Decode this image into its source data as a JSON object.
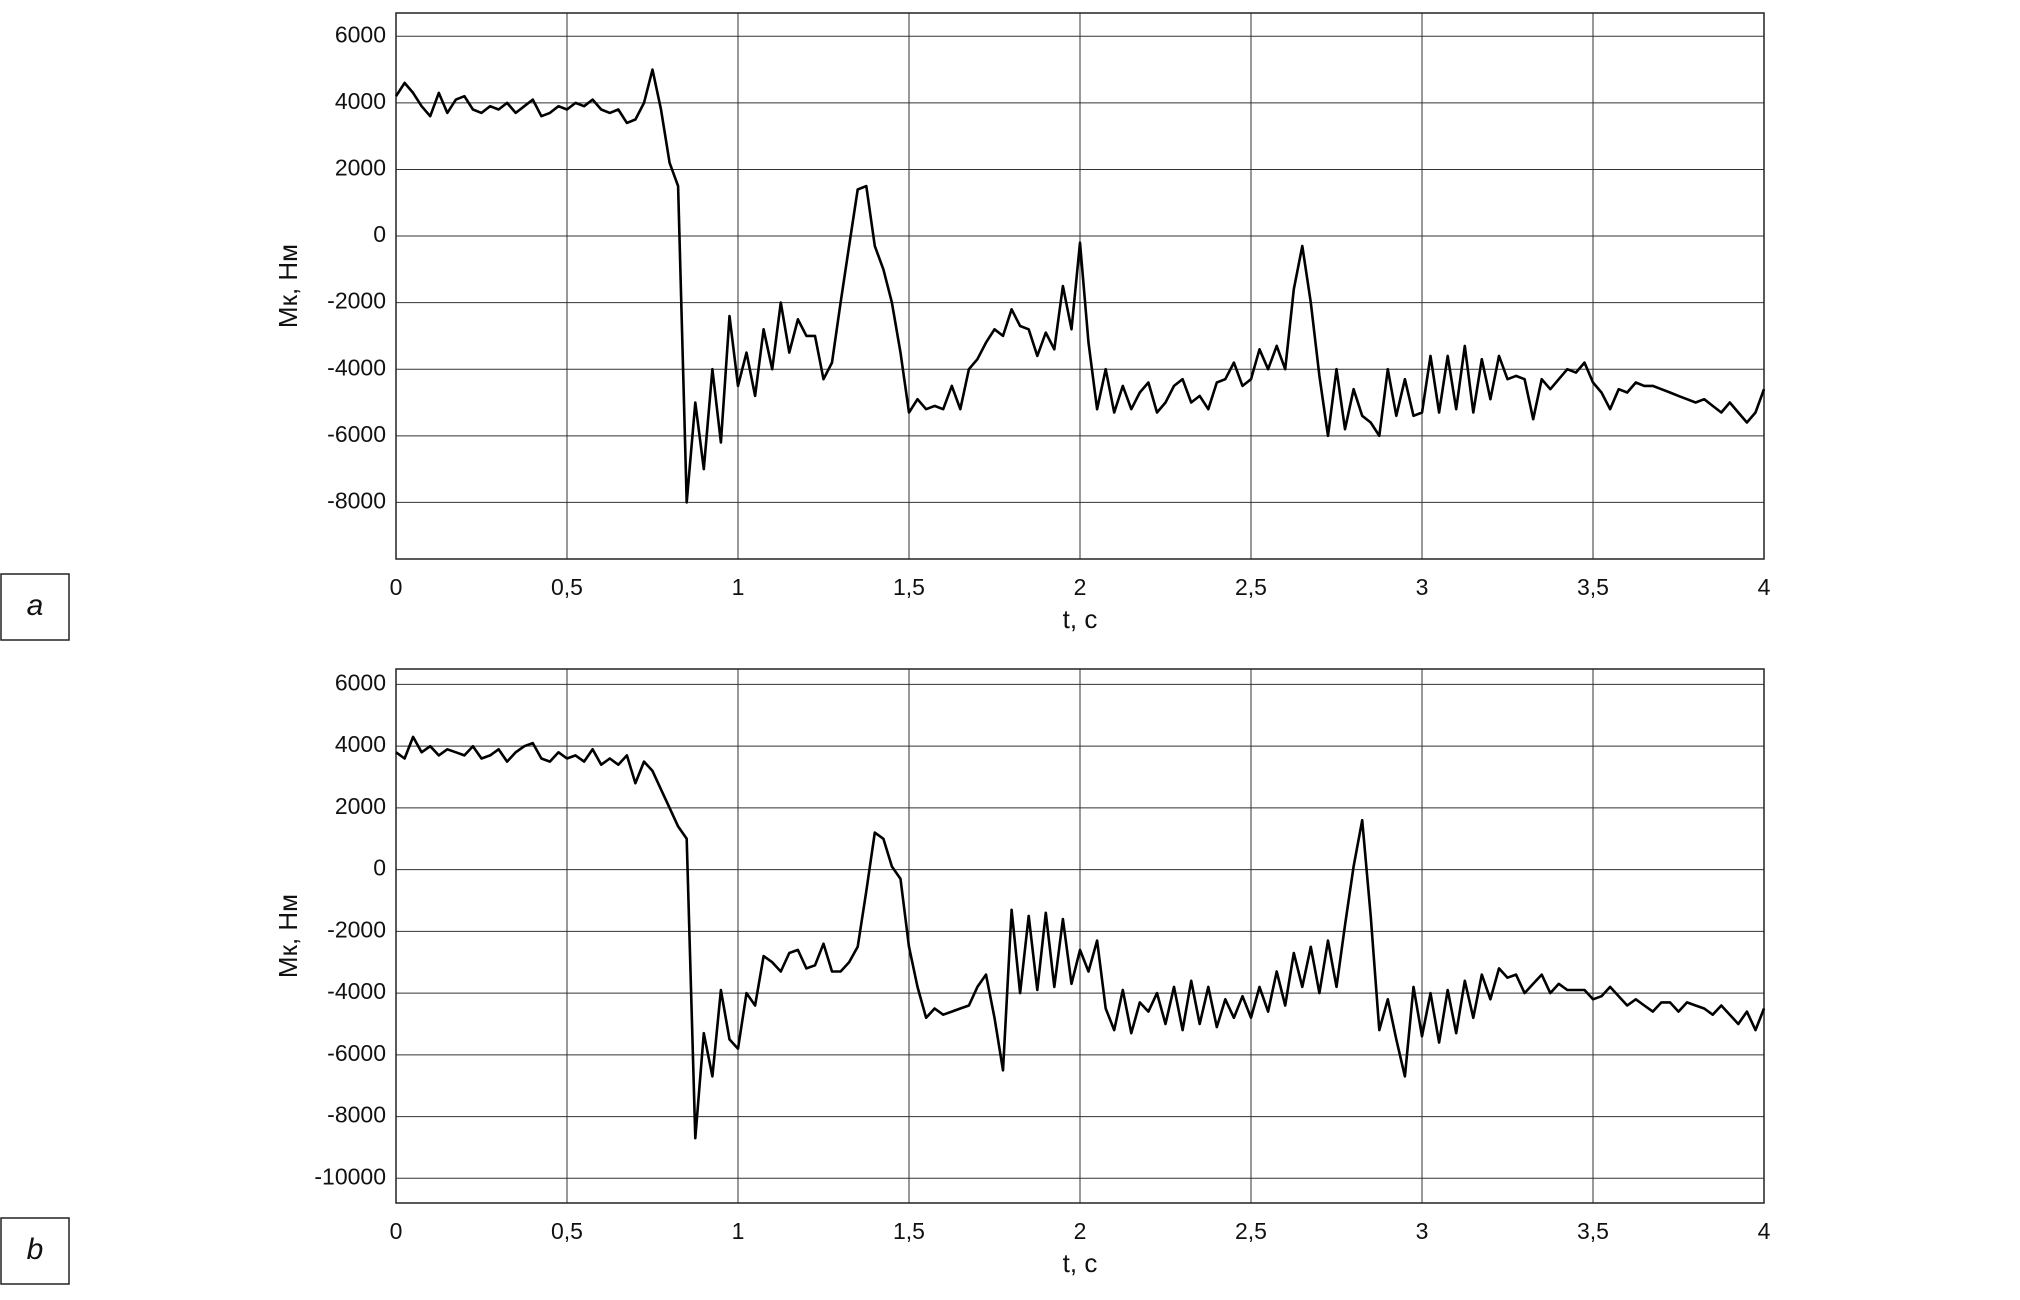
{
  "chart_data": [
    {
      "type": "line",
      "panel_label": "a",
      "xlabel": "t, c",
      "ylabel": "Мк, Нм",
      "color": "#000000",
      "grid": true,
      "xlim": [
        0,
        4
      ],
      "ylim": [
        -9700,
        6700
      ],
      "xticks": [
        0,
        {
          "value": 0.5,
          "label": "0,5"
        },
        1,
        {
          "value": 1.5,
          "label": "1,5"
        },
        2,
        {
          "value": 2.5,
          "label": "2,5"
        },
        3,
        {
          "value": 3.5,
          "label": "3,5"
        },
        4
      ],
      "yticks": [
        -8000,
        -6000,
        -4000,
        -2000,
        0,
        2000,
        4000,
        6000
      ],
      "x": [
        0,
        0.025,
        0.05,
        0.075,
        0.1,
        0.125,
        0.15,
        0.175,
        0.2,
        0.225,
        0.25,
        0.275,
        0.3,
        0.325,
        0.35,
        0.375,
        0.4,
        0.425,
        0.45,
        0.475,
        0.5,
        0.525,
        0.55,
        0.575,
        0.6,
        0.625,
        0.65,
        0.675,
        0.7,
        0.725,
        0.75,
        0.775,
        0.8,
        0.825,
        0.85,
        0.875,
        0.9,
        0.925,
        0.95,
        0.975,
        1,
        1.025,
        1.05,
        1.075,
        1.1,
        1.125,
        1.15,
        1.175,
        1.2,
        1.225,
        1.25,
        1.275,
        1.3,
        1.325,
        1.35,
        1.375,
        1.4,
        1.425,
        1.45,
        1.475,
        1.5,
        1.525,
        1.55,
        1.575,
        1.6,
        1.625,
        1.65,
        1.675,
        1.7,
        1.725,
        1.75,
        1.775,
        1.8,
        1.825,
        1.85,
        1.875,
        1.9,
        1.925,
        1.95,
        1.975,
        2,
        2.025,
        2.05,
        2.075,
        2.1,
        2.125,
        2.15,
        2.175,
        2.2,
        2.225,
        2.25,
        2.275,
        2.3,
        2.325,
        2.35,
        2.375,
        2.4,
        2.425,
        2.45,
        2.475,
        2.5,
        2.525,
        2.55,
        2.575,
        2.6,
        2.625,
        2.65,
        2.675,
        2.7,
        2.725,
        2.75,
        2.775,
        2.8,
        2.825,
        2.85,
        2.875,
        2.9,
        2.925,
        2.95,
        2.975,
        3,
        3.025,
        3.05,
        3.075,
        3.1,
        3.125,
        3.15,
        3.175,
        3.2,
        3.225,
        3.25,
        3.275,
        3.3,
        3.325,
        3.35,
        3.375,
        3.4,
        3.425,
        3.45,
        3.475,
        3.5,
        3.525,
        3.55,
        3.575,
        3.6,
        3.625,
        3.65,
        3.675,
        3.7,
        3.725,
        3.75,
        3.775,
        3.8,
        3.825,
        3.85,
        3.875,
        3.9,
        3.925,
        3.95,
        3.975,
        4
      ],
      "values": [
        4200,
        4600,
        4300,
        3900,
        3600,
        4300,
        3700,
        4100,
        4200,
        3800,
        3700,
        3900,
        3800,
        4000,
        3700,
        3900,
        4100,
        3600,
        3700,
        3900,
        3800,
        4000,
        3900,
        4100,
        3800,
        3700,
        3800,
        3400,
        3500,
        4000,
        5000,
        3800,
        2200,
        1500,
        -8000,
        -5000,
        -7000,
        -4000,
        -6200,
        -2400,
        -4500,
        -3500,
        -4800,
        -2800,
        -4000,
        -2000,
        -3500,
        -2500,
        -3000,
        -3000,
        -4300,
        -3800,
        -2000,
        -300,
        1400,
        1500,
        -300,
        -1000,
        -2000,
        -3500,
        -5300,
        -4900,
        -5200,
        -5100,
        -5200,
        -4500,
        -5200,
        -4000,
        -3700,
        -3200,
        -2800,
        -3000,
        -2200,
        -2700,
        -2800,
        -3600,
        -2900,
        -3400,
        -1500,
        -2800,
        -200,
        -3200,
        -5200,
        -4000,
        -5300,
        -4500,
        -5200,
        -4700,
        -4400,
        -5300,
        -5000,
        -4500,
        -4300,
        -5000,
        -4800,
        -5200,
        -4400,
        -4300,
        -3800,
        -4500,
        -4300,
        -3400,
        -4000,
        -3300,
        -4000,
        -1600,
        -300,
        -2000,
        -4200,
        -6000,
        -4000,
        -5800,
        -4600,
        -5400,
        -5600,
        -6000,
        -4000,
        -5400,
        -4300,
        -5400,
        -5300,
        -3600,
        -5300,
        -3600,
        -5200,
        -3300,
        -5300,
        -3700,
        -4900,
        -3600,
        -4300,
        -4200,
        -4300,
        -5500,
        -4300,
        -4600,
        -4300,
        -4000,
        -4100,
        -3800,
        -4400,
        -4700,
        -5200,
        -4600,
        -4700,
        -4400,
        -4500,
        -4500,
        -4600,
        -4700,
        -4800,
        -4900,
        -5000,
        -4900,
        -5100,
        -5300,
        -5000,
        -5300,
        -5600,
        -5300,
        -4600
      ]
    },
    {
      "type": "line",
      "panel_label": "b",
      "xlabel": "t, c",
      "ylabel": "Мк, Нм",
      "color": "#000000",
      "grid": true,
      "xlim": [
        0,
        4
      ],
      "ylim": [
        -10800,
        6500
      ],
      "xticks": [
        0,
        {
          "value": 0.5,
          "label": "0,5"
        },
        1,
        {
          "value": 1.5,
          "label": "1,5"
        },
        2,
        {
          "value": 2.5,
          "label": "2,5"
        },
        3,
        {
          "value": 3.5,
          "label": "3,5"
        },
        4
      ],
      "yticks": [
        -10000,
        -8000,
        -6000,
        -4000,
        -2000,
        0,
        2000,
        4000,
        6000
      ],
      "x": [
        0,
        0.025,
        0.05,
        0.075,
        0.1,
        0.125,
        0.15,
        0.175,
        0.2,
        0.225,
        0.25,
        0.275,
        0.3,
        0.325,
        0.35,
        0.375,
        0.4,
        0.425,
        0.45,
        0.475,
        0.5,
        0.525,
        0.55,
        0.575,
        0.6,
        0.625,
        0.65,
        0.675,
        0.7,
        0.725,
        0.75,
        0.775,
        0.8,
        0.825,
        0.85,
        0.875,
        0.9,
        0.925,
        0.95,
        0.975,
        1,
        1.025,
        1.05,
        1.075,
        1.1,
        1.125,
        1.15,
        1.175,
        1.2,
        1.225,
        1.25,
        1.275,
        1.3,
        1.325,
        1.35,
        1.375,
        1.4,
        1.425,
        1.45,
        1.475,
        1.5,
        1.525,
        1.55,
        1.575,
        1.6,
        1.625,
        1.65,
        1.675,
        1.7,
        1.725,
        1.75,
        1.775,
        1.8,
        1.825,
        1.85,
        1.875,
        1.9,
        1.925,
        1.95,
        1.975,
        2,
        2.025,
        2.05,
        2.075,
        2.1,
        2.125,
        2.15,
        2.175,
        2.2,
        2.225,
        2.25,
        2.275,
        2.3,
        2.325,
        2.35,
        2.375,
        2.4,
        2.425,
        2.45,
        2.475,
        2.5,
        2.525,
        2.55,
        2.575,
        2.6,
        2.625,
        2.65,
        2.675,
        2.7,
        2.725,
        2.75,
        2.775,
        2.8,
        2.825,
        2.85,
        2.875,
        2.9,
        2.925,
        2.95,
        2.975,
        3,
        3.025,
        3.05,
        3.075,
        3.1,
        3.125,
        3.15,
        3.175,
        3.2,
        3.225,
        3.25,
        3.275,
        3.3,
        3.325,
        3.35,
        3.375,
        3.4,
        3.425,
        3.45,
        3.475,
        3.5,
        3.525,
        3.55,
        3.575,
        3.6,
        3.625,
        3.65,
        3.675,
        3.7,
        3.725,
        3.75,
        3.775,
        3.8,
        3.825,
        3.85,
        3.875,
        3.9,
        3.925,
        3.95,
        3.975,
        4
      ],
      "values": [
        3800,
        3600,
        4300,
        3800,
        4000,
        3700,
        3900,
        3800,
        3700,
        4000,
        3600,
        3700,
        3900,
        3500,
        3800,
        4000,
        4100,
        3600,
        3500,
        3800,
        3600,
        3700,
        3500,
        3900,
        3400,
        3600,
        3400,
        3700,
        2800,
        3500,
        3200,
        2600,
        2000,
        1400,
        1000,
        -8700,
        -5300,
        -6700,
        -3900,
        -5500,
        -5800,
        -4000,
        -4400,
        -2800,
        -3000,
        -3300,
        -2700,
        -2600,
        -3200,
        -3100,
        -2400,
        -3300,
        -3300,
        -3000,
        -2500,
        -700,
        1200,
        1000,
        100,
        -300,
        -2500,
        -3800,
        -4800,
        -4500,
        -4700,
        -4600,
        -4500,
        -4400,
        -3800,
        -3400,
        -4800,
        -6500,
        -1300,
        -4000,
        -1500,
        -3900,
        -1400,
        -3800,
        -1600,
        -3700,
        -2600,
        -3300,
        -2300,
        -4500,
        -5200,
        -3900,
        -5300,
        -4300,
        -4600,
        -4000,
        -5000,
        -3800,
        -5200,
        -3600,
        -5000,
        -3800,
        -5100,
        -4200,
        -4800,
        -4100,
        -4800,
        -3800,
        -4600,
        -3300,
        -4400,
        -2700,
        -3800,
        -2500,
        -4000,
        -2300,
        -3800,
        -1800,
        100,
        1600,
        -1500,
        -5200,
        -4200,
        -5500,
        -6700,
        -3800,
        -5400,
        -4000,
        -5600,
        -3900,
        -5300,
        -3600,
        -4800,
        -3400,
        -4200,
        -3200,
        -3500,
        -3400,
        -4000,
        -3700,
        -3400,
        -4000,
        -3700,
        -3900,
        -3900,
        -3900,
        -4200,
        -4100,
        -3800,
        -4100,
        -4400,
        -4200,
        -4400,
        -4600,
        -4300,
        -4300,
        -4600,
        -4300,
        -4400,
        -4500,
        -4700,
        -4400,
        -4700,
        -5000,
        -4600,
        -5200,
        -4500
      ]
    }
  ]
}
